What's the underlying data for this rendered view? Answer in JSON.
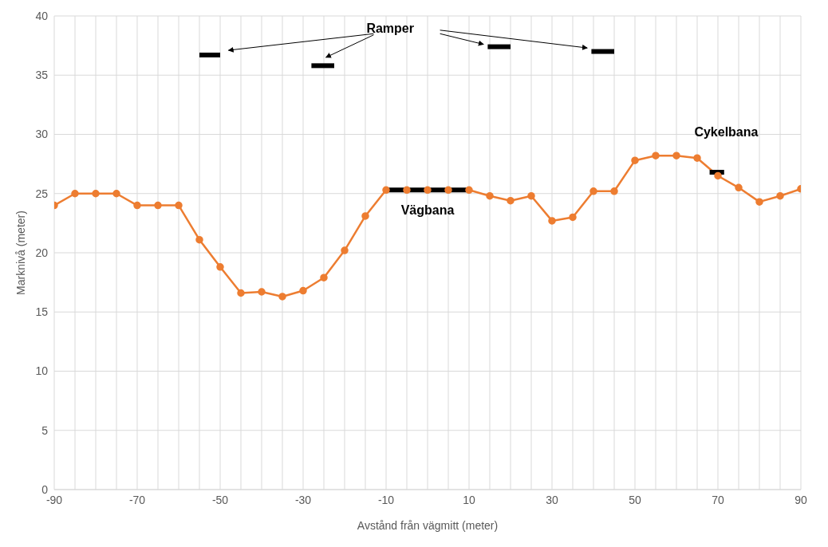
{
  "chart_data": {
    "type": "line",
    "xlabel": "Avstånd från vägmitt (meter)",
    "ylabel": "Marknivå (meter)",
    "xlim": [
      -90,
      90
    ],
    "xticks": [
      -90,
      {
        "value": -85,
        "label": null
      },
      {
        "value": -80,
        "label": null
      },
      {
        "value": -75,
        "label": null
      },
      -70,
      {
        "value": -65,
        "label": null
      },
      {
        "value": -60,
        "label": null
      },
      {
        "value": -55,
        "label": null
      },
      -50,
      {
        "value": -45,
        "label": null
      },
      {
        "value": -40,
        "label": null
      },
      {
        "value": -35,
        "label": null
      },
      -30,
      {
        "value": -25,
        "label": null
      },
      {
        "value": -20,
        "label": null
      },
      {
        "value": -15,
        "label": null
      },
      -10,
      {
        "value": -5,
        "label": null
      },
      {
        "value": 0,
        "label": null
      },
      {
        "value": 5,
        "label": null
      },
      10,
      {
        "value": 15,
        "label": null
      },
      {
        "value": 20,
        "label": null
      },
      {
        "value": 25,
        "label": null
      },
      30,
      {
        "value": 35,
        "label": null
      },
      {
        "value": 40,
        "label": null
      },
      {
        "value": 45,
        "label": null
      },
      50,
      {
        "value": 55,
        "label": null
      },
      {
        "value": 60,
        "label": null
      },
      {
        "value": 65,
        "label": null
      },
      70,
      {
        "value": 75,
        "label": null
      },
      {
        "value": 80,
        "label": null
      },
      {
        "value": 85,
        "label": null
      },
      90
    ],
    "ylim": [
      0,
      40
    ],
    "yticks": [
      0,
      5,
      10,
      15,
      20,
      25,
      30,
      35,
      40
    ],
    "grid": true,
    "series": [
      {
        "color": "#ed7d31",
        "marker": "circle",
        "line_style": "solid",
        "x": [
          -90,
          -85,
          -80,
          -75,
          -70,
          -65,
          -60,
          -55,
          -50,
          -45,
          -40,
          -35,
          -30,
          -25,
          -20,
          -15,
          -10,
          -5,
          0,
          5,
          10,
          15,
          20,
          25,
          30,
          35,
          40,
          45,
          50,
          55,
          60,
          65,
          70,
          75,
          80,
          85,
          90
        ],
        "values": [
          24,
          25,
          25,
          25,
          24,
          24,
          24,
          21.1,
          18.8,
          16.6,
          16.7,
          16.3,
          16.8,
          17.9,
          20.2,
          23.1,
          25.3,
          25.3,
          25.3,
          25.3,
          25.3,
          24.8,
          24.4,
          24.8,
          22.7,
          23,
          25.2,
          25.2,
          27.8,
          28.2,
          28.2,
          28,
          26.5,
          25.5,
          24.3,
          24.8,
          25.4
        ]
      },
      {
        "color": "#000000",
        "marker": "none",
        "line_style": "solid",
        "x": [
          -55,
          -50
        ],
        "values": [
          36.7,
          36.7
        ]
      },
      {
        "color": "#000000",
        "marker": "none",
        "line_style": "solid",
        "x": [
          -28,
          -22.5
        ],
        "values": [
          35.8,
          35.8
        ]
      },
      {
        "color": "#000000",
        "marker": "none",
        "line_style": "solid",
        "x": [
          14.5,
          20
        ],
        "values": [
          37.4,
          37.4
        ]
      },
      {
        "color": "#000000",
        "marker": "none",
        "line_style": "solid",
        "x": [
          39.5,
          45
        ],
        "values": [
          37,
          37
        ]
      },
      {
        "color": "#000000",
        "marker": "none",
        "line_style": "solid",
        "x": [
          -10,
          10
        ],
        "values": [
          25.3,
          25.3
        ]
      },
      {
        "color": "#000000",
        "marker": "none",
        "line_style": "solid",
        "x": [
          68,
          71.5
        ],
        "values": [
          26.8,
          26.8
        ]
      }
    ],
    "annotations": [
      "Ramper",
      "Vägbana",
      "Cykelbana"
    ]
  }
}
